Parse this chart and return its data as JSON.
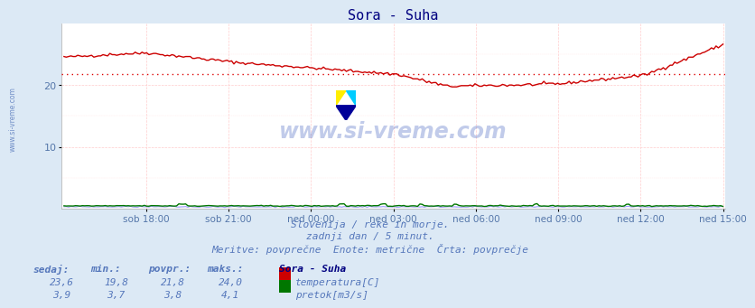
{
  "title": "Sora - Suha",
  "title_color": "#000080",
  "bg_color": "#dce9f5",
  "plot_bg_color": "#ffffff",
  "avg_line_color": "#dd0000",
  "avg_temp": 21.8,
  "ylim": [
    0,
    30
  ],
  "yticks": [
    10,
    20
  ],
  "tick_color": "#5577aa",
  "xtick_labels": [
    "sob 18:00",
    "sob 21:00",
    "ned 00:00",
    "ned 03:00",
    "ned 06:00",
    "ned 09:00",
    "ned 12:00",
    "ned 15:00"
  ],
  "n_points": 288,
  "temp_color": "#cc0000",
  "flow_color": "#007700",
  "height_color": "#9999ff",
  "watermark_color": "#3355bb",
  "watermark_text": "www.si-vreme.com",
  "watermark_alpha": 0.3,
  "footer_line1": "Slovenija / reke in morje.",
  "footer_line2": "zadnji dan / 5 minut.",
  "footer_line3": "Meritve: povprečne  Enote: metrične  Črta: povprečje",
  "footer_color": "#5577bb",
  "legend_title": "Sora - Suha",
  "legend_title_color": "#000080",
  "col_headers": [
    "sedaj:",
    "min.:",
    "povpr.:",
    "maks.:"
  ],
  "temp_row": [
    "23,6",
    "19,8",
    "21,8",
    "24,0"
  ],
  "flow_row": [
    "3,9",
    "3,7",
    "3,8",
    "4,1"
  ],
  "label_temp": "temperatura[C]",
  "label_flow": "pretok[m3/s]",
  "table_color": "#5577bb",
  "side_label_color": "#5577bb",
  "grid_color": "#ffcccc"
}
